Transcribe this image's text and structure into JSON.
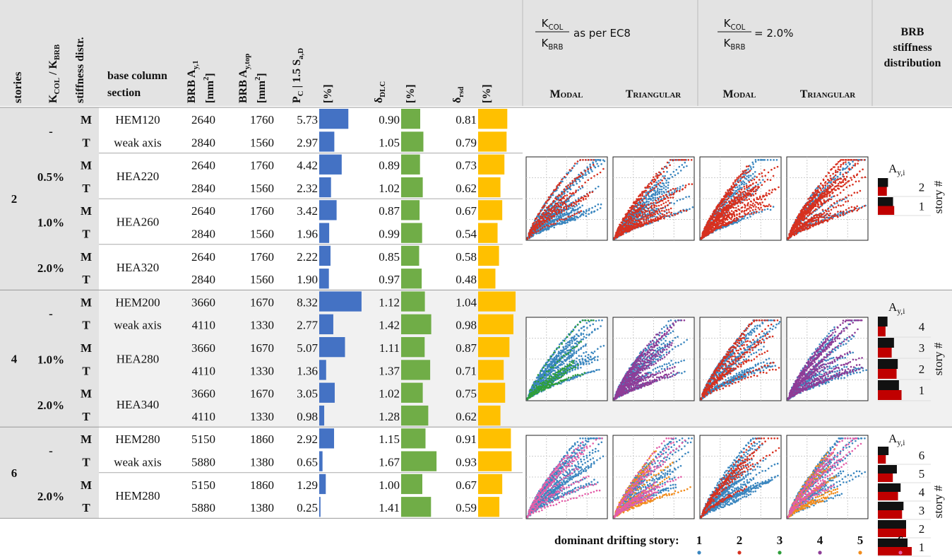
{
  "header": {
    "stories": "stories",
    "k_ratio": [
      "K",
      "COL",
      " / K",
      "BRB"
    ],
    "distribution": "stiffness distr.",
    "base_section": [
      "base column",
      "section"
    ],
    "ay1": [
      "BRB A",
      "y,1"
    ],
    "ay1_unit": [
      "[mm",
      "2",
      "]"
    ],
    "aytop": [
      "BRB A",
      "y,top"
    ],
    "aytop_unit": [
      "[mm",
      "2",
      "]"
    ],
    "pc": [
      "P",
      "C",
      " | 1.5 S",
      "a,D"
    ],
    "pc_unit": "[%]",
    "dlc": [
      "δ",
      "DLC"
    ],
    "dlc_unit": "[%]",
    "rsd": [
      "δ",
      "rsd"
    ],
    "rsd_unit": "[%]",
    "plots": [
      {
        "ratio_num": [
          "K",
          "COL"
        ],
        "ratio_den": [
          "K",
          "BRB"
        ],
        "text": "as per EC8",
        "modes": [
          "Modal",
          "Triangular"
        ]
      },
      {
        "ratio_num": [
          "K",
          "COL"
        ],
        "ratio_den": [
          "K",
          "BRB"
        ],
        "text": "= 2.0%",
        "modes": [
          "Modal",
          "Triangular"
        ]
      }
    ],
    "profile_title": [
      "BRB",
      "stiffness",
      "distribution"
    ]
  },
  "colors": {
    "M": "#111111",
    "T": "#c00000",
    "pc": "#4472c4",
    "dlc": "#70ad47",
    "rsd": "#ffc000"
  },
  "groups": [
    {
      "stories": "2",
      "subgroups": [
        {
          "k": "-",
          "base": [
            "HEM120",
            "weak axis"
          ],
          "rows": [
            {
              "dist": "M",
              "ay1": 2640,
              "aytop": 1760,
              "pc": 5.73,
              "dlc": {
                "value": 0.9,
                "label": "0.90"
              },
              "rsd": 0.81
            },
            {
              "dist": "T",
              "ay1": 2840,
              "aytop": 1560,
              "pc": 2.97,
              "dlc": 1.05,
              "rsd": 0.79
            }
          ]
        },
        {
          "k": "0.5%",
          "base": [
            "HEA220"
          ],
          "rows": [
            {
              "dist": "M",
              "ay1": 2640,
              "aytop": 1760,
              "pc": 4.42,
              "dlc": 0.89,
              "rsd": 0.73
            },
            {
              "dist": "T",
              "ay1": 2840,
              "aytop": 1560,
              "pc": 2.32,
              "dlc": 1.02,
              "rsd": 0.62
            }
          ]
        },
        {
          "k": "1.0%",
          "base": [
            "HEA260"
          ],
          "rows": [
            {
              "dist": "M",
              "ay1": 2640,
              "aytop": 1760,
              "pc": 3.42,
              "dlc": 0.87,
              "rsd": 0.67
            },
            {
              "dist": "T",
              "ay1": 2840,
              "aytop": 1560,
              "pc": 1.96,
              "dlc": 0.99,
              "rsd": 0.54
            }
          ]
        },
        {
          "k": "2.0%",
          "base": [
            "HEA320"
          ],
          "rows": [
            {
              "dist": "M",
              "ay1": 2640,
              "aytop": 1760,
              "pc": 2.22,
              "dlc": 0.85,
              "rsd": 0.58
            },
            {
              "dist": "T",
              "ay1": 2840,
              "aytop": 1560,
              "pc": {
                "value": 1.9,
                "label": "1.90"
              },
              "dlc": 0.97,
              "rsd": 0.48
            }
          ]
        }
      ]
    },
    {
      "stories": "4",
      "subgroups": [
        {
          "k": "-",
          "base": [
            "HEM200",
            "weak axis"
          ],
          "rows": [
            {
              "dist": "M",
              "ay1": 3660,
              "aytop": 1670,
              "pc": 8.32,
              "dlc": 1.12,
              "rsd": 1.04
            },
            {
              "dist": "T",
              "ay1": 4110,
              "aytop": 1330,
              "pc": 2.77,
              "dlc": 1.42,
              "rsd": 0.98
            }
          ]
        },
        {
          "k": "1.0%",
          "base": [
            "HEA280"
          ],
          "rows": [
            {
              "dist": "M",
              "ay1": 3660,
              "aytop": 1670,
              "pc": 5.07,
              "dlc": 1.11,
              "rsd": 0.87
            },
            {
              "dist": "T",
              "ay1": 4110,
              "aytop": 1330,
              "pc": 1.36,
              "dlc": 1.37,
              "rsd": 0.71
            }
          ]
        },
        {
          "k": "2.0%",
          "base": [
            "HEA340"
          ],
          "rows": [
            {
              "dist": "M",
              "ay1": 3660,
              "aytop": 1670,
              "pc": 3.05,
              "dlc": 1.02,
              "rsd": 0.75
            },
            {
              "dist": "T",
              "ay1": 4110,
              "aytop": 1330,
              "pc": 0.98,
              "dlc": 1.28,
              "rsd": 0.62
            }
          ]
        }
      ]
    },
    {
      "stories": "6",
      "subgroups": [
        {
          "k": "-",
          "base": [
            "HEM280",
            "weak axis"
          ],
          "rows": [
            {
              "dist": "M",
              "ay1": 5150,
              "aytop": 1860,
              "pc": 2.92,
              "dlc": 1.15,
              "rsd": 0.91
            },
            {
              "dist": "T",
              "ay1": 5880,
              "aytop": 1380,
              "pc": 0.65,
              "dlc": 1.67,
              "rsd": 0.93
            }
          ]
        },
        {
          "k": "2.0%",
          "base": [
            "HEM280"
          ],
          "rows": [
            {
              "dist": "M",
              "ay1": 5150,
              "aytop": 1860,
              "pc": 1.29,
              "dlc": {
                "value": 1,
                "label": "1.00"
              },
              "rsd": 0.67
            },
            {
              "dist": "T",
              "ay1": 5880,
              "aytop": 1380,
              "pc": 0.25,
              "dlc": 1.41,
              "rsd": 0.59
            }
          ]
        }
      ]
    }
  ],
  "profiles": [
    {
      "title": [
        "A",
        "y,i"
      ],
      "axis": "story #",
      "stories": [
        "2",
        "1"
      ],
      "modal": [
        1760,
        2640
      ],
      "triangular": [
        1560,
        2840
      ]
    },
    {
      "title": [
        "A",
        "y,i"
      ],
      "axis": "story #",
      "stories": [
        "4",
        "3",
        "2",
        "1"
      ],
      "modal": [
        1670,
        2800,
        3450,
        3660
      ],
      "triangular": [
        1330,
        2400,
        3250,
        4110
      ]
    },
    {
      "title": [
        "A",
        "y,i"
      ],
      "axis": "story #",
      "stories": [
        "6",
        "5",
        "4",
        "3",
        "2",
        "1"
      ],
      "modal": [
        1860,
        3300,
        3950,
        4450,
        4900,
        5150
      ],
      "triangular": [
        1380,
        2600,
        3500,
        4200,
        4900,
        5880
      ]
    }
  ],
  "legend": {
    "title": "dominant drifting story:",
    "items": [
      {
        "label": "1",
        "color": "#3a86bf"
      },
      {
        "label": "2",
        "color": "#d7301f"
      },
      {
        "label": "3",
        "color": "#2e9e3a"
      },
      {
        "label": "4",
        "color": "#8e3c97"
      },
      {
        "label": "5",
        "color": "#f28c1c"
      },
      {
        "label": "6",
        "color": "#e35ea8"
      }
    ]
  }
}
